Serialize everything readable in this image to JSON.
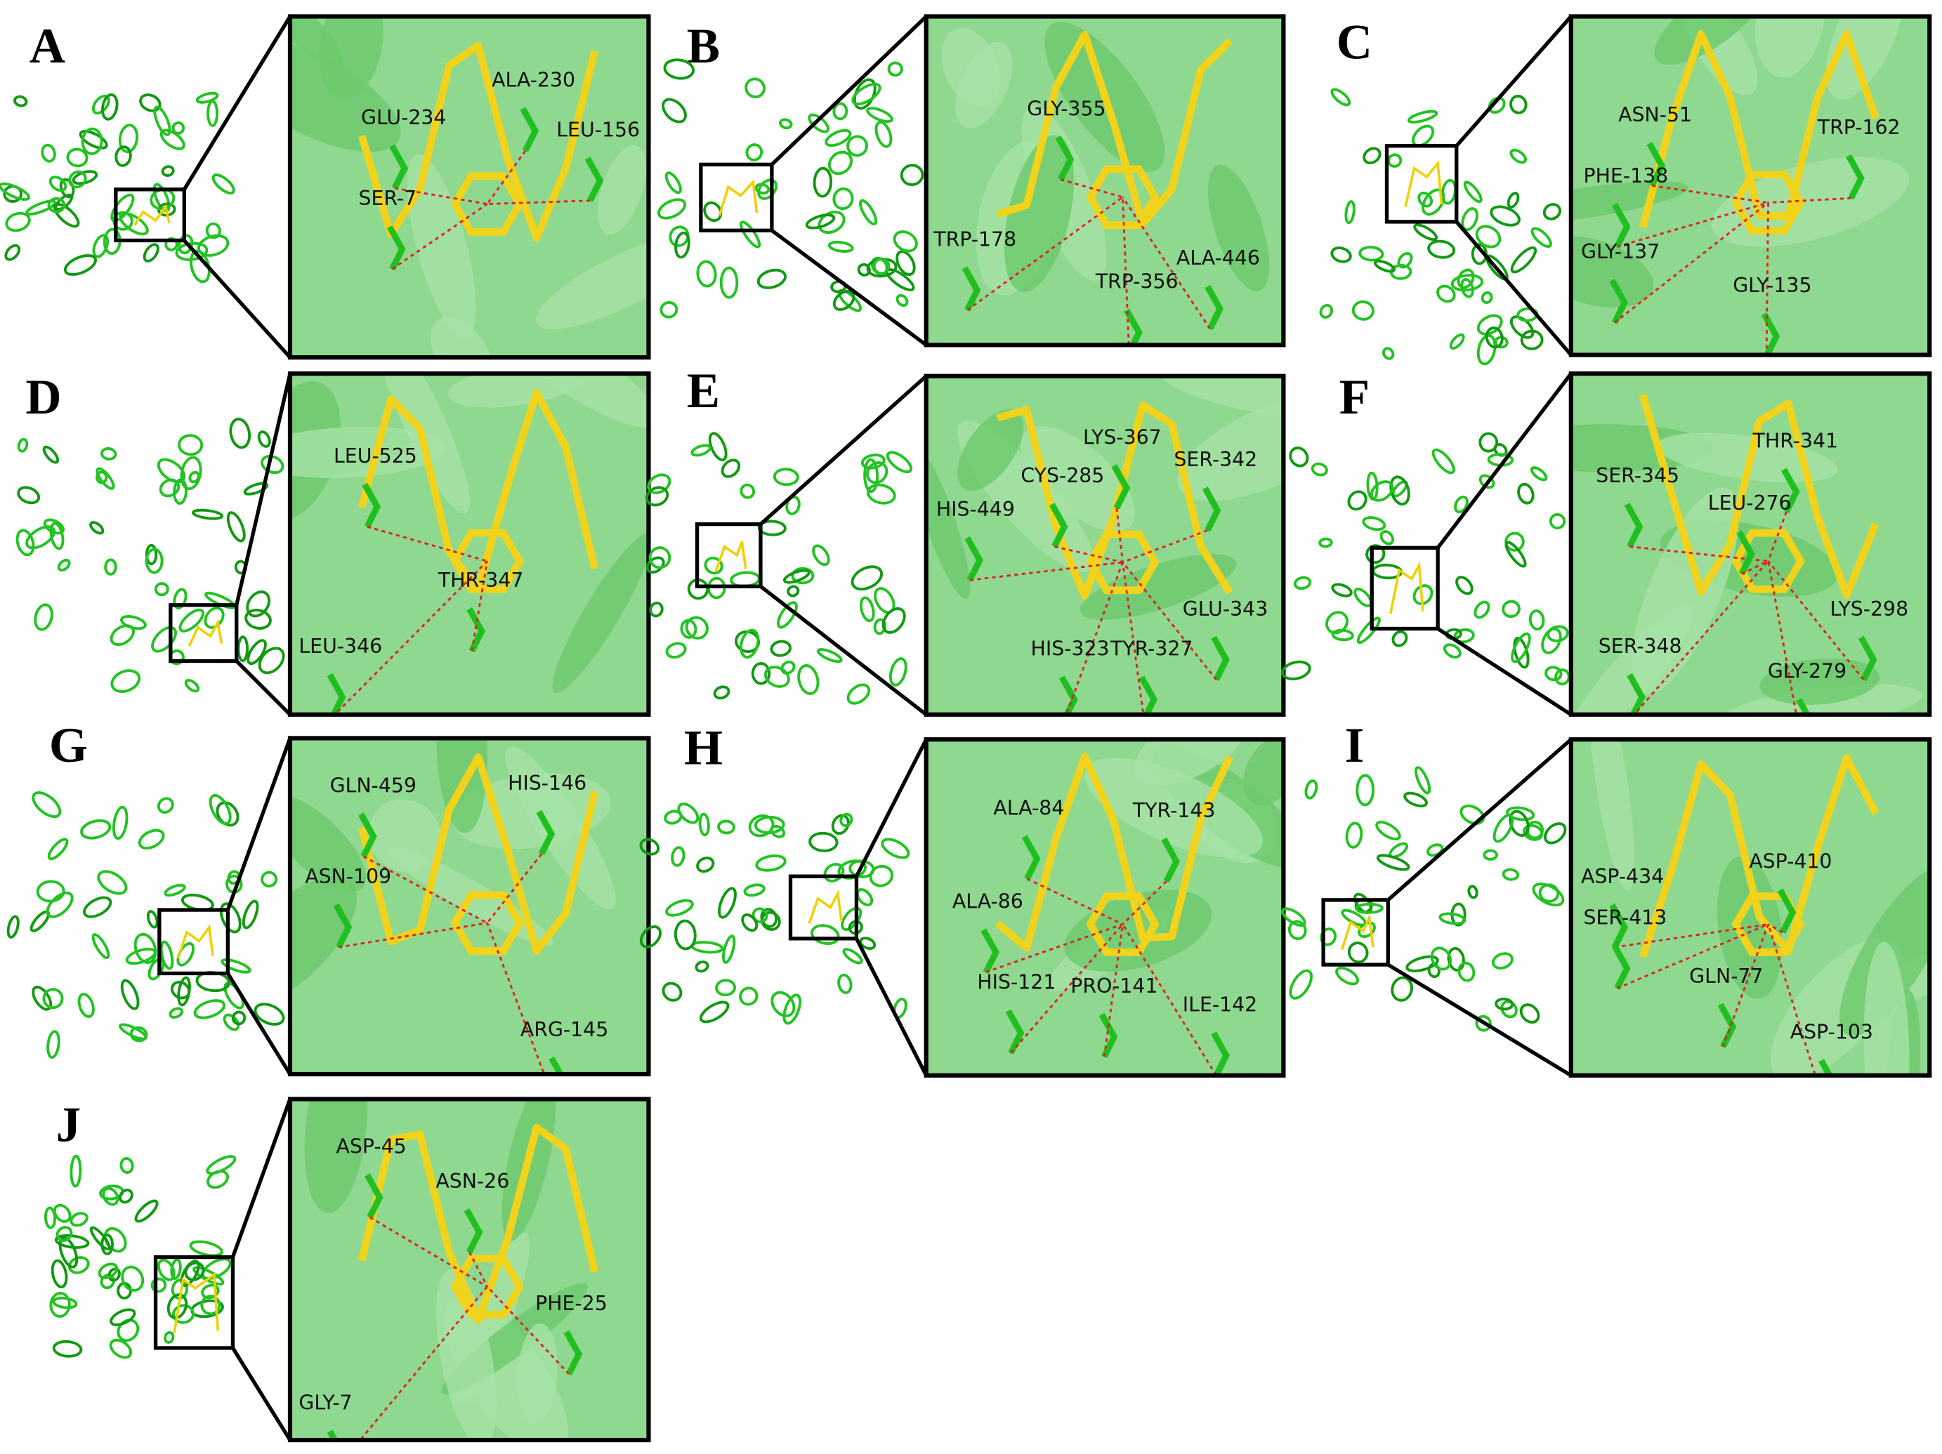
{
  "panels": [
    {
      "label": "A",
      "residues": [
        "GLU-234",
        "ALA-230",
        "LEU-156",
        "SER-7"
      ]
    },
    {
      "label": "B",
      "residues": [
        "GLY-355",
        "TRP-178",
        "TRP-356",
        "ALA-446"
      ]
    },
    {
      "label": "C",
      "residues": [
        "ASN-51",
        "TRP-162",
        "PHE-138",
        "GLY-137",
        "GLY-135"
      ]
    },
    {
      "label": "D",
      "residues": [
        "LEU-525",
        "THR-347",
        "LEU-346"
      ]
    },
    {
      "label": "E",
      "residues": [
        "LYS-367",
        "SER-342",
        "CYS-285",
        "HIS-449",
        "HIS-323",
        "TYR-327",
        "GLU-343"
      ]
    },
    {
      "label": "F",
      "residues": [
        "THR-341",
        "SER-345",
        "LEU-276",
        "LYS-298",
        "SER-348",
        "GLY-279"
      ]
    },
    {
      "label": "G",
      "residues": [
        "GLN-459",
        "HIS-146",
        "ASN-109",
        "ARG-145"
      ]
    },
    {
      "label": "H",
      "residues": [
        "ALA-84",
        "TYR-143",
        "ALA-86",
        "HIS-121",
        "PRO-141",
        "ILE-142"
      ]
    },
    {
      "label": "I",
      "residues": [
        "ASP-434",
        "ASP-410",
        "SER-413",
        "GLN-77",
        "ASP-103"
      ]
    },
    {
      "label": "J",
      "residues": [
        "ASP-45",
        "ASN-26",
        "PHE-25",
        "GLY-7"
      ]
    }
  ]
}
